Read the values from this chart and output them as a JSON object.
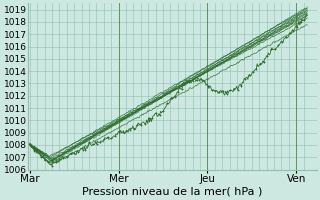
{
  "xlabel": "Pression niveau de la mer( hPa )",
  "bg_color": "#cce8e0",
  "grid_color": "#90bfb0",
  "line_color": "#2d6b2d",
  "ylim": [
    1006,
    1019.5
  ],
  "yticks": [
    1006,
    1007,
    1008,
    1009,
    1010,
    1011,
    1012,
    1013,
    1014,
    1015,
    1016,
    1017,
    1018,
    1019
  ],
  "xtick_labels": [
    "Mar",
    "Mer",
    "Jeu",
    "Ven"
  ],
  "xtick_positions": [
    0,
    96,
    192,
    288
  ],
  "xlim": [
    -2,
    310
  ],
  "total_points": 300,
  "xlabel_fontsize": 8,
  "ytick_fontsize": 6.5,
  "xtick_fontsize": 7.5
}
